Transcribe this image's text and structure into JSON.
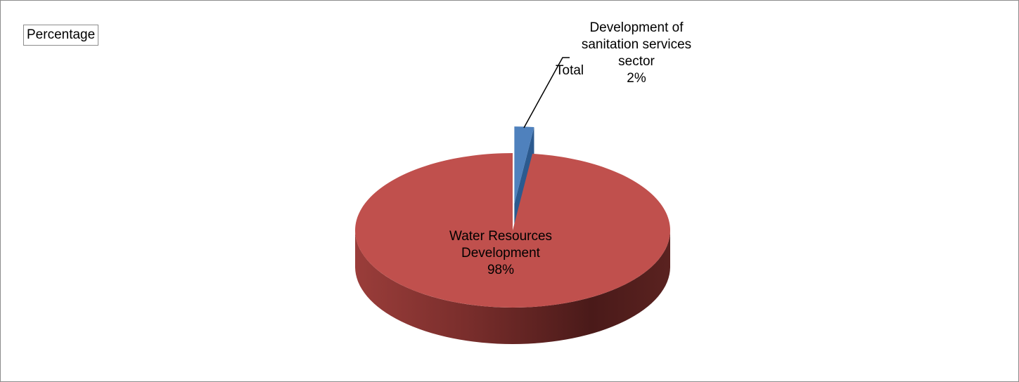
{
  "chart_data": {
    "type": "pie3d",
    "field_label": "Percentage",
    "series_name": "Total",
    "categories": [
      "Development of sanitation services sector",
      "Water Resources Development"
    ],
    "values": [
      2,
      98
    ],
    "value_labels": [
      "2%",
      "98%"
    ],
    "colors": [
      "#4f81bd",
      "#c0504d"
    ],
    "explode": [
      true,
      false
    ]
  }
}
